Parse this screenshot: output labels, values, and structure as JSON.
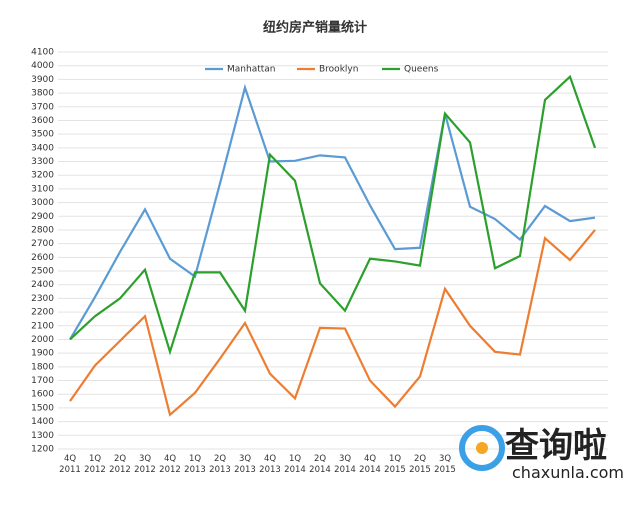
{
  "chart_data": {
    "type": "line",
    "title": "纽约房产销量统计",
    "categories": [
      "4Q\n2011",
      "1Q\n2012",
      "2Q\n2012",
      "3Q\n2012",
      "4Q\n2012",
      "1Q\n2013",
      "2Q\n2013",
      "3Q\n2013",
      "4Q\n2013",
      "1Q\n2014",
      "2Q\n2014",
      "3Q\n2014",
      "4Q\n2014",
      "1Q\n2015",
      "2Q\n2015",
      "3Q\n2015",
      null,
      null,
      null,
      null,
      null,
      null
    ],
    "series": [
      {
        "name": "Manhattan",
        "color": "#5b9bd5",
        "values": [
          2000,
          2310,
          2640,
          2950,
          2590,
          2460,
          3140,
          3840,
          3300,
          3305,
          3345,
          3330,
          2980,
          2660,
          2670,
          3650,
          2970,
          2880,
          2730,
          2975,
          2865,
          2890
        ]
      },
      {
        "name": "Brooklyn",
        "color": "#ed7d31",
        "values": [
          1550,
          1810,
          1990,
          2170,
          1450,
          1610,
          1860,
          2120,
          1750,
          1570,
          2085,
          2080,
          1700,
          1510,
          1730,
          2370,
          2100,
          1910,
          1890,
          2740,
          2580,
          2800
        ]
      },
      {
        "name": "Queens",
        "color": "#2ca02c",
        "values": [
          2000,
          2170,
          2300,
          2510,
          1910,
          2490,
          2490,
          2210,
          3350,
          3160,
          2410,
          2210,
          2590,
          2570,
          2540,
          3650,
          3440,
          2520,
          2610,
          3750,
          3920,
          3400
        ]
      }
    ],
    "ylim": [
      1200,
      4100
    ],
    "yticks": [
      1200,
      1300,
      1400,
      1500,
      1600,
      1700,
      1800,
      1900,
      2000,
      2100,
      2200,
      2300,
      2400,
      2500,
      2600,
      2700,
      2800,
      2900,
      3000,
      3100,
      3200,
      3300,
      3400,
      3500,
      3600,
      3700,
      3800,
      3900,
      4000,
      4100
    ],
    "grid": true,
    "legend": "top",
    "annotations": [
      "查询啦",
      "chaxunla.com"
    ]
  }
}
